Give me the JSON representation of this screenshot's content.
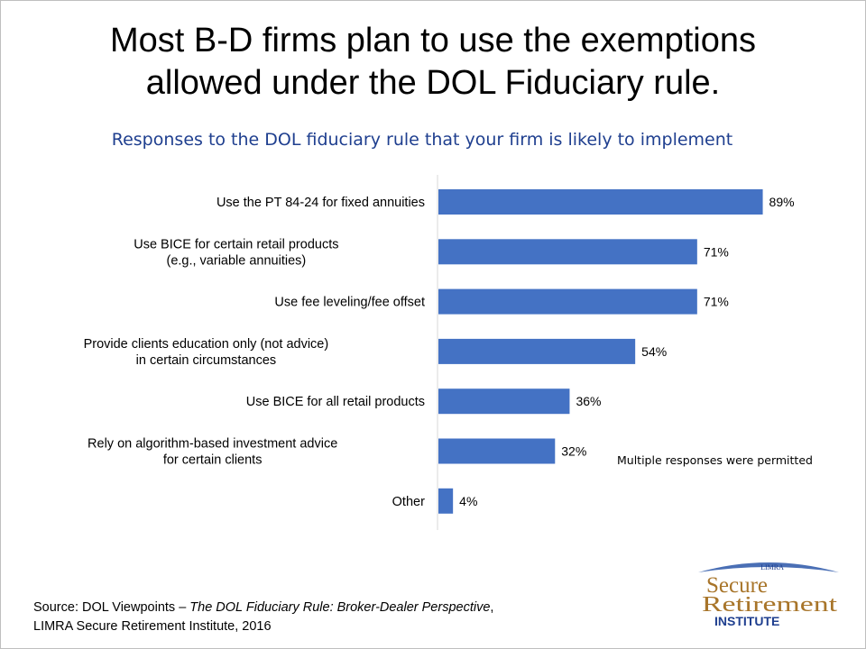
{
  "title_line1": "Most B-D firms plan to use the exemptions",
  "title_line2": "allowed under the DOL Fiduciary rule.",
  "note": "Multiple responses were permitted",
  "source": {
    "prefix": "Source: DOL Viewpoints – ",
    "italic": "The DOL Fiduciary Rule: Broker-Dealer Perspective",
    "suffix": ",",
    "line2": "LIMRA Secure Retirement Institute,  2016"
  },
  "logo": {
    "top_text": "LIMRA",
    "word1": "Secure",
    "word2": "Retirement",
    "word3": "INSTITUTE",
    "arc_color": "#4a6fb5",
    "text_color": "#a8752a",
    "institute_color": "#1f3f8f"
  },
  "chart_data": {
    "type": "bar",
    "orientation": "horizontal",
    "title": "Responses to the DOL fiduciary rule that your firm is likely to implement",
    "bar_color": "#4472c4",
    "categories": [
      [
        "Use the PT 84-24 for fixed annuities"
      ],
      [
        "Use BICE for certain retail products",
        "(e.g., variable annuities)"
      ],
      [
        "Use fee leveling/fee offset"
      ],
      [
        "Provide clients education only (not advice)",
        "in certain circumstances"
      ],
      [
        "Use BICE for all retail products"
      ],
      [
        "Rely on algorithm-based investment advice",
        "for certain clients"
      ],
      [
        "Other"
      ]
    ],
    "values": [
      89,
      71,
      71,
      54,
      36,
      32,
      4
    ],
    "value_labels": [
      "89%",
      "71%",
      "71%",
      "54%",
      "36%",
      "32%",
      "4%"
    ],
    "xlim": [
      0,
      100
    ],
    "grid": false,
    "legend": "none"
  }
}
